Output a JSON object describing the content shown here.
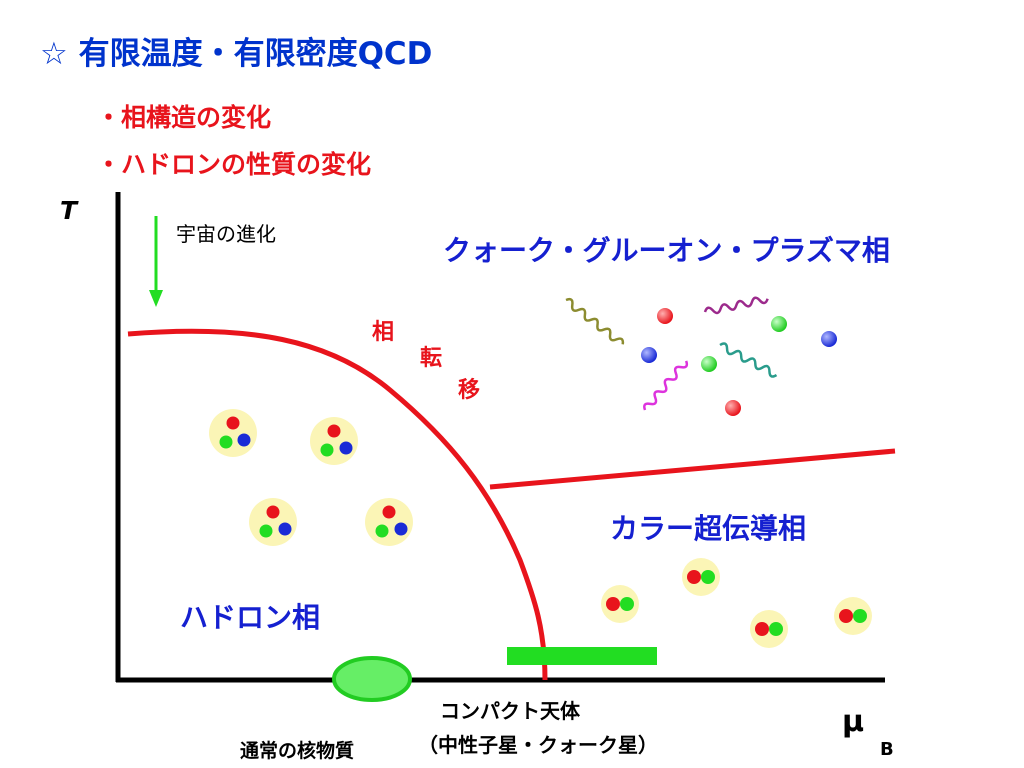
{
  "title": "☆ 有限温度・有限密度QCD",
  "bullets": [
    "・相構造の変化",
    "・ハドロンの性質の変化"
  ],
  "axes": {
    "y_label": "T",
    "x_label": "μ",
    "x_subscript": "B"
  },
  "annotations": {
    "cosmic_evolution": "宇宙の進化",
    "phase_transition_chars": [
      "相",
      "転",
      "移"
    ],
    "compact_star_line1": "コンパクト天体",
    "compact_star_line2": "（中性子星・クォーク星）",
    "nuclear_matter": "通常の核物質"
  },
  "phases": {
    "qgp": "クォーク・グルーオン・プラズマ相",
    "color_superconducting": "カラー超伝導相",
    "hadron": "ハドロン相"
  },
  "colors": {
    "title": "#0033cc",
    "bullet": "#e8141c",
    "phase_label": "#1520d0",
    "boundary": "#e8141c",
    "arrow": "#22dd22",
    "particle_red": "#e8141c",
    "particle_green": "#22dd22",
    "particle_blue": "#1a2bd6",
    "particle_bg": "#fbf5b6"
  }
}
